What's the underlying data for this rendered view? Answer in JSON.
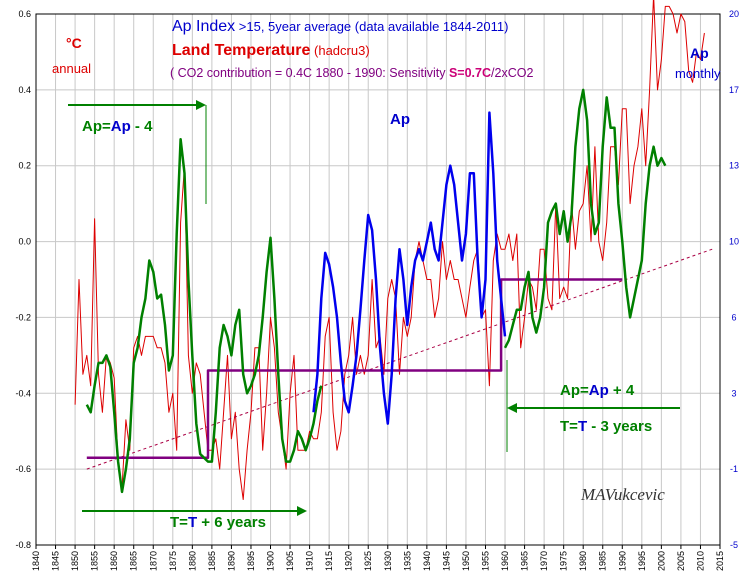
{
  "chart_data": {
    "type": "line",
    "title_parts": {
      "ap_index_label": "Ap Index",
      "ap_index_detail": " >15, 5year average (data available 1844-2011)",
      "land_temp_label": "Land Temperature",
      "land_temp_detail": " (hadcru3)",
      "co2_note_prefix": "( CO2 contribution  = 0.4C 1880 - 1990:  Sensitivity ",
      "co2_note_bold": "S=0.7C",
      "co2_note_suffix": "/2xCO2"
    },
    "left_axis": {
      "unit_symbol": "°C",
      "unit_note": "annual",
      "ylim": [
        -0.8,
        0.6
      ],
      "ticks": [
        "0.6",
        "0.4",
        "0.2",
        "0.0",
        "-0.2",
        "-0.4",
        "-0.6",
        "-0.8"
      ],
      "tick_values": [
        0.6,
        0.4,
        0.2,
        0.0,
        -0.2,
        -0.4,
        -0.6,
        -0.8
      ]
    },
    "right_axis": {
      "label": "Ap",
      "note": "monthly",
      "ticks": [
        "20",
        "17",
        "13",
        "10",
        "6",
        "3",
        "-1",
        "-5"
      ],
      "tick_values": [
        20,
        17,
        13,
        10,
        6,
        3,
        -1,
        -5
      ]
    },
    "x_axis": {
      "xlim": [
        1840,
        2015
      ],
      "ticks": [
        "1840",
        "1845",
        "1850",
        "1855",
        "1860",
        "1865",
        "1870",
        "1875",
        "1880",
        "1885",
        "1890",
        "1895",
        "1900",
        "1905",
        "1910",
        "1915",
        "1920",
        "1925",
        "1930",
        "1935",
        "1940",
        "1945",
        "1950",
        "1955",
        "1960",
        "1965",
        "1970",
        "1975",
        "1980",
        "1985",
        "1990",
        "1995",
        "2000",
        "2005",
        "2010",
        "2015"
      ],
      "tick_values": [
        1840,
        1845,
        1850,
        1855,
        1860,
        1865,
        1870,
        1875,
        1880,
        1885,
        1890,
        1895,
        1900,
        1905,
        1910,
        1915,
        1920,
        1925,
        1930,
        1935,
        1940,
        1945,
        1950,
        1955,
        1960,
        1965,
        1970,
        1975,
        1980,
        1985,
        1990,
        1995,
        2000,
        2005,
        2010,
        2015
      ]
    },
    "grid": true,
    "annotations": {
      "ap_label_plot": "Ap",
      "shift_minus": {
        "a": "Ap",
        "eq": "=",
        "b": "Ap",
        "rest": " - 4"
      },
      "shift_plus": {
        "a": "Ap",
        "eq": "=",
        "b": "Ap",
        "rest": " + 4"
      },
      "t_plus": {
        "a": "T",
        "eq": "=",
        "b": "T",
        "rest": " + 6 years"
      },
      "t_minus": {
        "a": "T",
        "eq": "=",
        "b": "T",
        "rest": " - 3 years"
      },
      "signature": "MAVukcevic"
    },
    "colors": {
      "temperature": "#dd0000",
      "ap_shifted": "#008000",
      "ap_unshifted": "#0000ee",
      "trend": "#aa0044",
      "steps": "#800080",
      "grid": "#c8c8c8",
      "axis_blue": "#0000cc",
      "co2_purple": "#800080"
    },
    "series": [
      {
        "name": "Land Temperature",
        "axis": "left",
        "x": [
          1850,
          1851,
          1852,
          1853,
          1854,
          1855,
          1856,
          1857,
          1858,
          1859,
          1860,
          1861,
          1862,
          1863,
          1864,
          1865,
          1866,
          1867,
          1868,
          1869,
          1870,
          1871,
          1872,
          1873,
          1874,
          1875,
          1876,
          1877,
          1878,
          1879,
          1880,
          1881,
          1882,
          1883,
          1884,
          1885,
          1886,
          1887,
          1888,
          1889,
          1890,
          1891,
          1892,
          1893,
          1894,
          1895,
          1896,
          1897,
          1898,
          1899,
          1900,
          1901,
          1902,
          1903,
          1904,
          1905,
          1906,
          1907,
          1908,
          1909,
          1910,
          1911,
          1912,
          1913,
          1914,
          1915,
          1916,
          1917,
          1918,
          1919,
          1920,
          1921,
          1922,
          1923,
          1924,
          1925,
          1926,
          1927,
          1928,
          1929,
          1930,
          1931,
          1932,
          1933,
          1934,
          1935,
          1936,
          1937,
          1938,
          1939,
          1940,
          1941,
          1942,
          1943,
          1944,
          1945,
          1946,
          1947,
          1948,
          1949,
          1950,
          1951,
          1952,
          1953,
          1954,
          1955,
          1956,
          1957,
          1958,
          1959,
          1960,
          1961,
          1962,
          1963,
          1964,
          1965,
          1966,
          1967,
          1968,
          1969,
          1970,
          1971,
          1972,
          1973,
          1974,
          1975,
          1976,
          1977,
          1978,
          1979,
          1980,
          1981,
          1982,
          1983,
          1984,
          1985,
          1986,
          1987,
          1988,
          1989,
          1990,
          1991,
          1992,
          1993,
          1994,
          1995,
          1996,
          1997,
          1998,
          1999,
          2000,
          2001,
          2002,
          2003,
          2004,
          2005,
          2006,
          2007,
          2008,
          2009,
          2010,
          2011
        ],
        "values": [
          -0.43,
          -0.1,
          -0.35,
          -0.3,
          -0.38,
          0.06,
          -0.35,
          -0.45,
          -0.3,
          -0.32,
          -0.36,
          -0.58,
          -0.65,
          -0.47,
          -0.55,
          -0.28,
          -0.25,
          -0.3,
          -0.25,
          -0.25,
          -0.25,
          -0.28,
          -0.28,
          -0.32,
          -0.45,
          -0.4,
          -0.55,
          0.05,
          0.2,
          -0.3,
          -0.4,
          -0.32,
          -0.35,
          -0.45,
          -0.55,
          -0.55,
          -0.52,
          -0.6,
          -0.45,
          -0.3,
          -0.52,
          -0.45,
          -0.6,
          -0.68,
          -0.55,
          -0.45,
          -0.28,
          -0.28,
          -0.55,
          -0.4,
          -0.2,
          -0.28,
          -0.45,
          -0.52,
          -0.6,
          -0.4,
          -0.3,
          -0.55,
          -0.55,
          -0.55,
          -0.5,
          -0.52,
          -0.52,
          -0.45,
          -0.25,
          -0.2,
          -0.45,
          -0.55,
          -0.5,
          -0.35,
          -0.3,
          -0.2,
          -0.35,
          -0.3,
          -0.35,
          -0.3,
          -0.1,
          -0.28,
          -0.25,
          -0.35,
          -0.15,
          -0.1,
          -0.15,
          -0.35,
          -0.2,
          -0.25,
          -0.2,
          -0.05,
          0.0,
          -0.05,
          -0.1,
          -0.1,
          -0.2,
          -0.15,
          0.0,
          -0.1,
          -0.05,
          -0.1,
          -0.1,
          -0.15,
          -0.2,
          -0.12,
          -0.05,
          -0.02,
          -0.2,
          -0.18,
          -0.38,
          -0.05,
          0.02,
          -0.02,
          -0.02,
          0.02,
          -0.05,
          0.02,
          -0.28,
          -0.2,
          -0.1,
          -0.12,
          -0.18,
          -0.02,
          -0.02,
          -0.15,
          -0.18,
          0.1,
          -0.15,
          -0.12,
          -0.15,
          0.1,
          -0.02,
          0.08,
          0.1,
          0.2,
          0.0,
          0.25,
          0.0,
          -0.05,
          0.05,
          0.25,
          0.25,
          0.15,
          0.35,
          0.35,
          0.1,
          0.2,
          0.25,
          0.35,
          0.2,
          0.4,
          0.65,
          0.4,
          0.48,
          0.62,
          0.62,
          0.6,
          0.55,
          0.6,
          0.58,
          0.45,
          0.42,
          0.5,
          0.48,
          0.55
        ],
        "note": "left axis (deg C, annual)"
      },
      {
        "name": "Ap",
        "axis": "left",
        "segment": "shifted 1850-1913",
        "x": [
          1853,
          1854,
          1855,
          1856,
          1857,
          1858,
          1859,
          1860,
          1861,
          1862,
          1863,
          1864,
          1865,
          1866,
          1867,
          1868,
          1869,
          1870,
          1871,
          1872,
          1873,
          1874,
          1875,
          1876,
          1877,
          1878,
          1879,
          1880,
          1881,
          1882,
          1883,
          1884,
          1885,
          1886,
          1887,
          1888,
          1889,
          1890,
          1891,
          1892,
          1893,
          1894,
          1895,
          1896,
          1897,
          1898,
          1899,
          1900,
          1901,
          1902,
          1903,
          1904,
          1905,
          1906,
          1907,
          1908,
          1909,
          1910,
          1911,
          1912,
          1913
        ],
        "values": [
          -0.43,
          -0.45,
          -0.38,
          -0.32,
          -0.32,
          -0.3,
          -0.33,
          -0.45,
          -0.58,
          -0.66,
          -0.6,
          -0.52,
          -0.32,
          -0.28,
          -0.2,
          -0.15,
          -0.05,
          -0.08,
          -0.15,
          -0.14,
          -0.22,
          -0.34,
          -0.3,
          0.02,
          0.27,
          0.18,
          -0.1,
          -0.3,
          -0.48,
          -0.56,
          -0.57,
          -0.58,
          -0.58,
          -0.45,
          -0.28,
          -0.22,
          -0.25,
          -0.3,
          -0.22,
          -0.18,
          -0.35,
          -0.4,
          -0.38,
          -0.35,
          -0.3,
          -0.2,
          -0.08,
          0.01,
          -0.15,
          -0.35,
          -0.52,
          -0.58,
          -0.58,
          -0.55,
          -0.5,
          -0.52,
          -0.55,
          -0.52,
          -0.48,
          -0.42,
          -0.38
        ]
      },
      {
        "name": "Ap",
        "axis": "left",
        "segment": "unshifted 1911-1960",
        "x": [
          1911,
          1912,
          1913,
          1914,
          1915,
          1916,
          1917,
          1918,
          1919,
          1920,
          1921,
          1922,
          1923,
          1924,
          1925,
          1926,
          1927,
          1928,
          1929,
          1930,
          1931,
          1932,
          1933,
          1934,
          1935,
          1936,
          1937,
          1938,
          1939,
          1940,
          1941,
          1942,
          1943,
          1944,
          1945,
          1946,
          1947,
          1948,
          1949,
          1950,
          1951,
          1952,
          1953,
          1954,
          1955,
          1956,
          1957,
          1958,
          1959,
          1960
        ],
        "values": [
          -0.45,
          -0.35,
          -0.15,
          -0.03,
          -0.06,
          -0.12,
          -0.2,
          -0.32,
          -0.42,
          -0.45,
          -0.38,
          -0.3,
          -0.18,
          -0.05,
          0.07,
          0.03,
          -0.1,
          -0.28,
          -0.4,
          -0.48,
          -0.35,
          -0.15,
          -0.02,
          -0.1,
          -0.22,
          -0.12,
          -0.05,
          -0.02,
          -0.05,
          0.0,
          0.05,
          -0.02,
          -0.05,
          0.05,
          0.15,
          0.2,
          0.15,
          0.05,
          -0.05,
          0.02,
          0.18,
          0.18,
          -0.05,
          -0.2,
          -0.1,
          0.34,
          0.18,
          -0.05,
          -0.15,
          -0.25
        ]
      },
      {
        "name": "Ap",
        "axis": "left",
        "segment": "shifted 1960-2001",
        "x": [
          1960,
          1961,
          1962,
          1963,
          1964,
          1965,
          1966,
          1967,
          1968,
          1969,
          1970,
          1971,
          1972,
          1973,
          1974,
          1975,
          1976,
          1977,
          1978,
          1979,
          1980,
          1981,
          1982,
          1983,
          1984,
          1985,
          1986,
          1987,
          1988,
          1989,
          1990,
          1991,
          1992,
          1993,
          1994,
          1995,
          1996,
          1997,
          1998,
          1999,
          2000,
          2001
        ],
        "values": [
          -0.28,
          -0.26,
          -0.22,
          -0.18,
          -0.18,
          -0.12,
          -0.08,
          -0.2,
          -0.24,
          -0.2,
          -0.12,
          0.05,
          0.08,
          0.1,
          0.02,
          0.08,
          0.0,
          0.07,
          0.25,
          0.35,
          0.4,
          0.32,
          0.1,
          0.02,
          0.05,
          0.25,
          0.38,
          0.3,
          0.3,
          0.1,
          0.0,
          -0.12,
          -0.2,
          -0.15,
          -0.1,
          -0.05,
          0.1,
          0.2,
          0.25,
          0.2,
          0.22,
          0.2
        ]
      },
      {
        "name": "trend",
        "axis": "left",
        "x": [
          1853,
          2013
        ],
        "values": [
          -0.6,
          -0.02
        ]
      },
      {
        "name": "steps",
        "axis": "left",
        "x": [
          1853,
          1884,
          1884,
          1959,
          1959,
          1990
        ],
        "values": [
          -0.57,
          -0.57,
          -0.34,
          -0.34,
          -0.1,
          -0.1
        ]
      }
    ]
  }
}
